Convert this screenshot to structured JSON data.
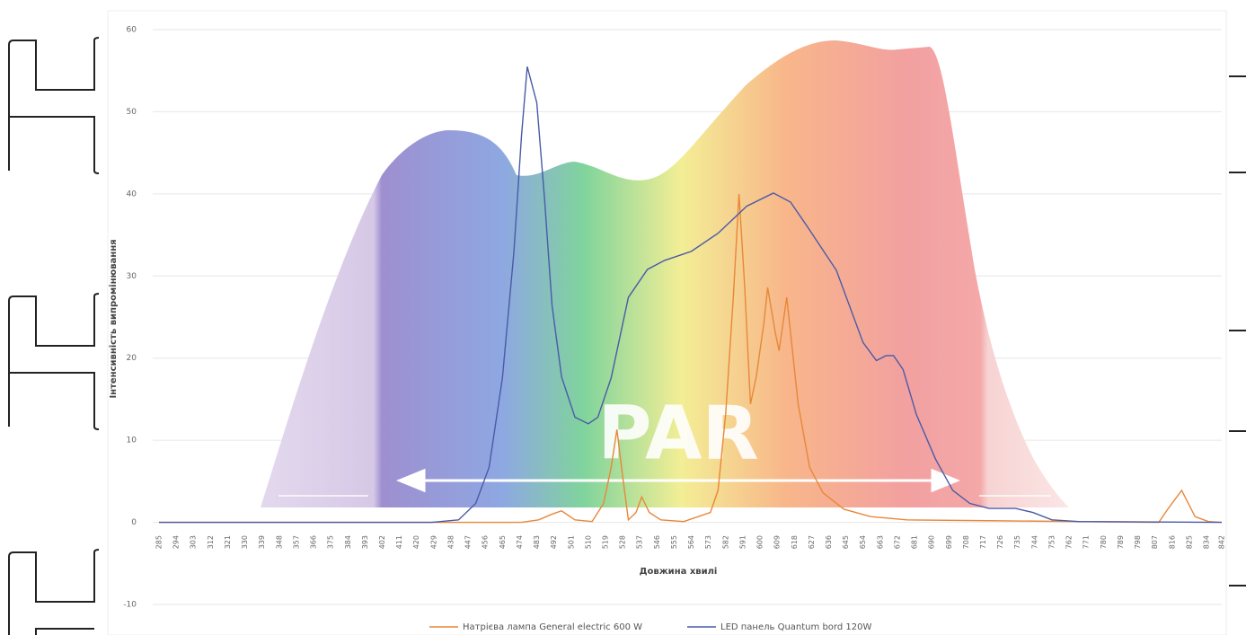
{
  "chart_data": {
    "type": "line",
    "annotation": "PAR",
    "x_label": "Довжина хвилі",
    "y_label": "Інтенсивність випромінювання",
    "xlim": [
      285,
      842
    ],
    "ylim": [
      -10,
      60
    ],
    "yticks": [
      -10,
      0,
      10,
      20,
      30,
      40,
      50,
      60
    ],
    "xticks": [
      285,
      294,
      303,
      312,
      321,
      330,
      339,
      348,
      357,
      366,
      375,
      384,
      393,
      402,
      411,
      420,
      429,
      438,
      447,
      456,
      465,
      474,
      483,
      492,
      501,
      510,
      519,
      528,
      537,
      546,
      555,
      564,
      573,
      582,
      591,
      600,
      609,
      618,
      627,
      636,
      645,
      654,
      663,
      672,
      681,
      690,
      699,
      708,
      717,
      726,
      735,
      744,
      753,
      762,
      771,
      780,
      789,
      798,
      807,
      816,
      825,
      834,
      842
    ],
    "grid": true,
    "legend": "bottom",
    "series": [
      {
        "name": "Натрієва лампа General electric 600 W",
        "color": "#e8873a",
        "x": [
          285,
          475,
          484,
          491,
          496,
          503,
          512,
          518,
          522,
          525,
          528,
          531,
          535,
          538,
          542,
          548,
          560,
          574,
          578,
          582,
          586,
          589,
          592,
          595,
          598,
          602,
          604,
          608,
          610,
          614,
          616,
          620,
          626,
          633,
          644,
          658,
          677,
          720,
          767,
          809,
          814,
          821,
          828,
          835,
          842
        ],
        "values": [
          0,
          0,
          0.3,
          1.0,
          1.4,
          0.3,
          0.1,
          2.3,
          6.7,
          11.3,
          5.6,
          0.3,
          1.2,
          3.1,
          1.2,
          0.3,
          0.1,
          1.2,
          3.9,
          13.2,
          27.4,
          40.0,
          28.6,
          14.4,
          17.7,
          24.2,
          28.6,
          23.1,
          20.9,
          27.4,
          23.1,
          14.4,
          6.7,
          3.6,
          1.6,
          0.7,
          0.3,
          0.2,
          0.1,
          0,
          1.7,
          3.9,
          0.7,
          0.1,
          0
        ]
      },
      {
        "name": "LED панель Quantum bord 120W",
        "color": "#4a5aa8",
        "x": [
          285,
          428,
          442,
          451,
          458,
          465,
          471,
          475,
          478,
          483,
          487,
          491,
          496,
          503,
          510,
          515,
          522,
          531,
          541,
          550,
          564,
          578,
          593,
          607,
          616,
          626,
          640,
          654,
          661,
          666,
          670,
          675,
          682,
          692,
          701,
          710,
          720,
          734,
          743,
          753,
          767,
          842
        ],
        "values": [
          0,
          0,
          0.3,
          2.3,
          6.7,
          17.6,
          32.9,
          47.1,
          55.5,
          51.1,
          39.6,
          26.4,
          17.7,
          12.8,
          12.0,
          12.8,
          17.6,
          27.4,
          30.8,
          31.9,
          33.0,
          35.2,
          38.5,
          40.1,
          39.0,
          35.6,
          30.7,
          21.9,
          19.7,
          20.3,
          20.3,
          18.6,
          13.1,
          7.7,
          3.9,
          2.3,
          1.7,
          1.7,
          1.2,
          0.3,
          0.1,
          0
        ]
      }
    ]
  }
}
